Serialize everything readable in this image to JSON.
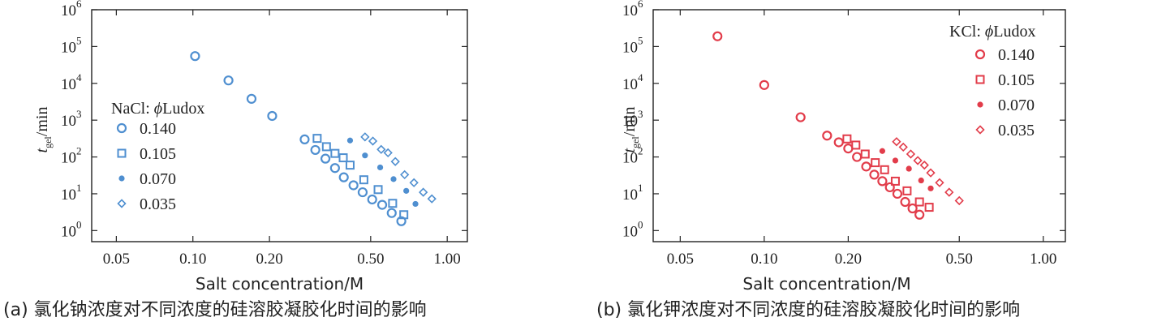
{
  "chart_data": [
    {
      "type": "scatter",
      "panel": "a",
      "caption": "(a) 氯化钠浓度对不同浓度的硅溶胶凝胶化时间的影响",
      "xlabel": "Salt concentration/M",
      "ylabel_main": "t",
      "ylabel_sub": "gel",
      "ylabel_unit": "/min",
      "x_scale": "log",
      "y_scale": "log",
      "xlim": [
        0.04,
        1.2
      ],
      "ylim": [
        0.5,
        1000000
      ],
      "x_ticks": [
        0.05,
        0.1,
        0.2,
        0.5,
        1.0
      ],
      "x_tick_labels": [
        "0.05",
        "0.10",
        "0.20",
        "0.50",
        "1.00"
      ],
      "y_ticks": [
        1,
        10,
        100,
        1000,
        10000,
        100000,
        1000000
      ],
      "y_tick_exponents": [
        "0",
        "1",
        "2",
        "3",
        "4",
        "5",
        "6"
      ],
      "legend_title_prefix": "NaCl: ",
      "legend_title_phi": "ϕ",
      "legend_title_suffix": "Ludox",
      "legend_position": "left-middle",
      "color": "#4f8fd0",
      "series": [
        {
          "name": "0.140",
          "marker": "circle",
          "x": [
            0.102,
            0.138,
            0.17,
            0.205,
            0.275,
            0.303,
            0.332,
            0.362,
            0.392,
            0.428,
            0.465,
            0.507,
            0.555,
            0.605,
            0.66
          ],
          "y": [
            55000,
            12000,
            3800,
            1300,
            300,
            155,
            90,
            50,
            28,
            17,
            11,
            7,
            5,
            3,
            1.8
          ]
        },
        {
          "name": "0.105",
          "marker": "square",
          "x": [
            0.308,
            0.335,
            0.362,
            0.39,
            0.415,
            0.47,
            0.535,
            0.61,
            0.675
          ],
          "y": [
            320,
            190,
            125,
            95,
            60,
            24,
            13,
            5.5,
            2.7
          ]
        },
        {
          "name": "0.070",
          "marker": "dot",
          "x": [
            0.415,
            0.475,
            0.545,
            0.615,
            0.69,
            0.75
          ],
          "y": [
            280,
            110,
            52,
            25,
            12,
            5.3
          ]
        },
        {
          "name": "0.035",
          "marker": "diamond",
          "x": [
            0.475,
            0.51,
            0.55,
            0.585,
            0.625,
            0.68,
            0.74,
            0.805,
            0.87
          ],
          "y": [
            350,
            270,
            160,
            130,
            75,
            33,
            20,
            11,
            7.3
          ]
        }
      ]
    },
    {
      "type": "scatter",
      "panel": "b",
      "caption": "(b) 氯化钾浓度对不同浓度的硅溶胶凝胶化时间的影响",
      "xlabel": "Salt concentration/M",
      "ylabel_main": "t",
      "ylabel_sub": "gel",
      "ylabel_unit": "/min",
      "x_scale": "log",
      "y_scale": "log",
      "xlim": [
        0.04,
        1.2
      ],
      "ylim": [
        0.5,
        1000000
      ],
      "x_ticks": [
        0.05,
        0.1,
        0.2,
        0.5,
        1.0
      ],
      "x_tick_labels": [
        "0.05",
        "0.10",
        "0.20",
        "0.50",
        "1.00"
      ],
      "y_ticks": [
        1,
        10,
        100,
        1000,
        10000,
        100000,
        1000000
      ],
      "y_tick_exponents": [
        "0",
        "1",
        "2",
        "3",
        "4",
        "5",
        "6"
      ],
      "legend_title_prefix": "KCl: ",
      "legend_title_phi": "ϕ",
      "legend_title_suffix": "Ludox",
      "legend_position": "top-right",
      "color": "#e23c4a",
      "series": [
        {
          "name": "0.140",
          "marker": "circle",
          "x": [
            0.068,
            0.1,
            0.135,
            0.168,
            0.185,
            0.2,
            0.215,
            0.232,
            0.248,
            0.265,
            0.282,
            0.3,
            0.32,
            0.34,
            0.36
          ],
          "y": [
            190000,
            9000,
            1200,
            380,
            250,
            170,
            100,
            55,
            33,
            22,
            15,
            10,
            6,
            4,
            2.7
          ]
        },
        {
          "name": "0.105",
          "marker": "square",
          "x": [
            0.198,
            0.213,
            0.23,
            0.25,
            0.27,
            0.295,
            0.325,
            0.36,
            0.39
          ],
          "y": [
            310,
            210,
            120,
            70,
            45,
            22,
            12,
            6,
            4.3
          ]
        },
        {
          "name": "0.070",
          "marker": "dot",
          "x": [
            0.265,
            0.295,
            0.33,
            0.365,
            0.395
          ],
          "y": [
            145,
            80,
            48,
            23,
            14
          ]
        },
        {
          "name": "0.035",
          "marker": "diamond",
          "x": [
            0.298,
            0.315,
            0.335,
            0.355,
            0.375,
            0.395,
            0.425,
            0.46,
            0.5
          ],
          "y": [
            260,
            185,
            120,
            80,
            60,
            37,
            20,
            11,
            6.5
          ]
        }
      ]
    }
  ]
}
